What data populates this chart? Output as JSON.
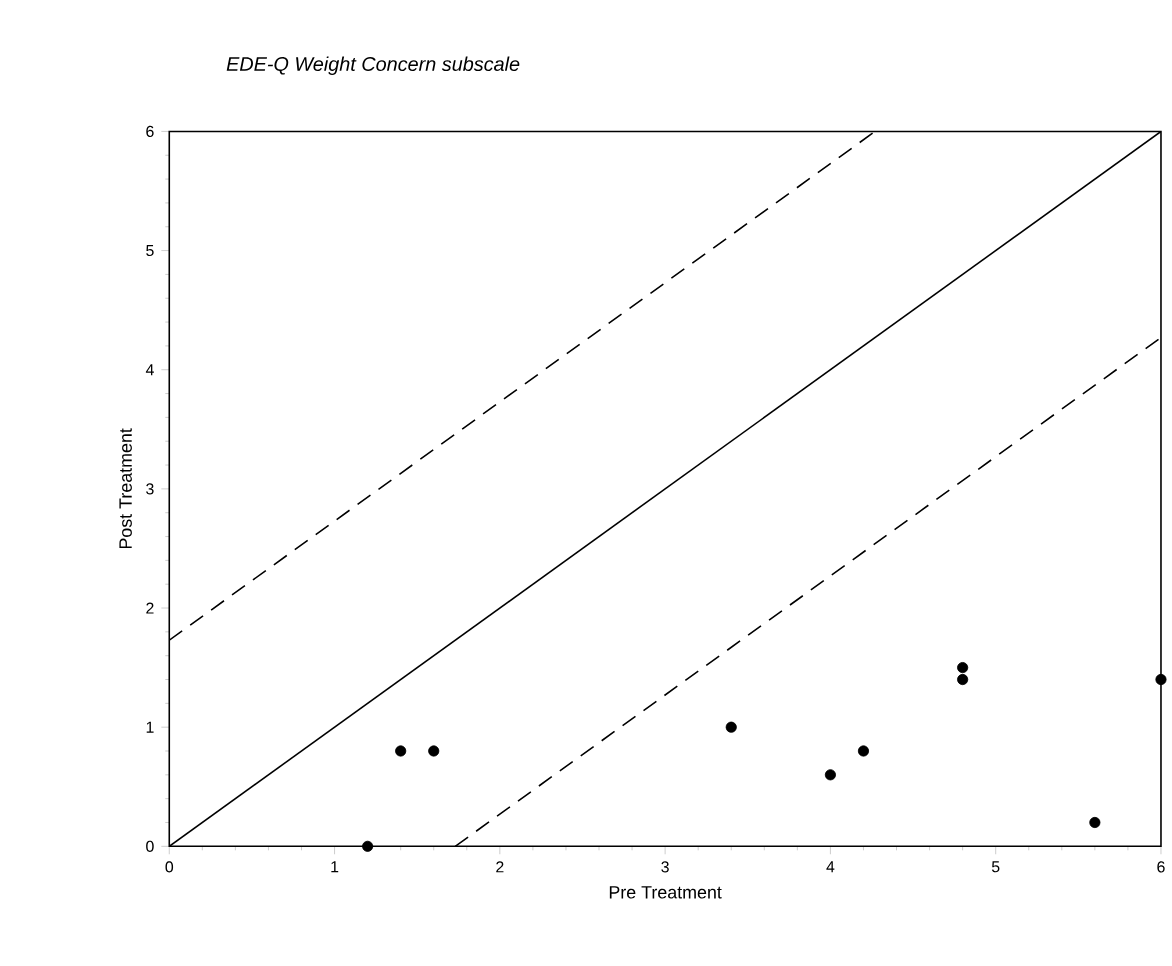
{
  "chart_data": {
    "type": "scatter",
    "title": "EDE-Q Weight Concern subscale",
    "xlabel": "Pre Treatment",
    "ylabel": "Post Treatment",
    "xlim": [
      0,
      6
    ],
    "ylim": [
      0,
      6
    ],
    "xticks": [
      0,
      1,
      2,
      3,
      4,
      5,
      6
    ],
    "yticks": [
      0,
      1,
      2,
      3,
      4,
      5,
      6
    ],
    "grid": false,
    "series": [
      {
        "marker": "circle",
        "color": "#000000",
        "x": [
          1.2,
          1.4,
          1.6,
          3.4,
          4.0,
          4.2,
          4.8,
          4.8,
          5.6,
          6.0
        ],
        "values": [
          0,
          0.8,
          0.8,
          1.0,
          0.6,
          0.8,
          1.5,
          1.4,
          0.2,
          1.4
        ]
      },
      {
        "type": "line",
        "line_style": "solid",
        "marker": "none",
        "color": "#000000",
        "x": [
          0,
          6
        ],
        "values": [
          0,
          6
        ]
      },
      {
        "type": "line",
        "line_style": "dashed",
        "marker": "none",
        "color": "#000000",
        "x": [
          0,
          4.27
        ],
        "values": [
          1.73,
          6
        ]
      },
      {
        "type": "line",
        "line_style": "dashed",
        "marker": "none",
        "color": "#000000",
        "x": [
          1.73,
          6
        ],
        "values": [
          0,
          4.27
        ]
      }
    ]
  }
}
